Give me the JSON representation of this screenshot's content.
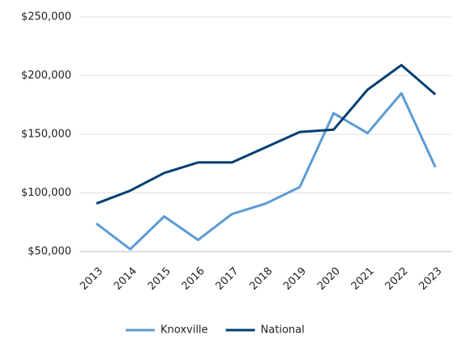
{
  "chart_data": {
    "type": "line",
    "categories": [
      "2013",
      "2014",
      "2015",
      "2016",
      "2017",
      "2018",
      "2019",
      "2020",
      "2021",
      "2022",
      "2023"
    ],
    "series": [
      {
        "name": "Knoxville",
        "color": "#5b9bd5",
        "values": [
          74000,
          52000,
          80000,
          60000,
          82000,
          91000,
          105000,
          168000,
          151000,
          185000,
          122000
        ]
      },
      {
        "name": "National",
        "color": "#003f72",
        "values": [
          91000,
          102000,
          117000,
          126000,
          126000,
          139000,
          152000,
          154000,
          188000,
          209000,
          184000
        ]
      }
    ],
    "ylim": [
      50000,
      250000
    ],
    "yticks": [
      {
        "value": 50000,
        "label": "$50,000"
      },
      {
        "value": 100000,
        "label": "$100,000"
      },
      {
        "value": 150000,
        "label": "$150,000"
      },
      {
        "value": 200000,
        "label": "$200,000"
      },
      {
        "value": 250000,
        "label": "$250,000"
      }
    ],
    "grid": true,
    "legend": "bottom"
  }
}
